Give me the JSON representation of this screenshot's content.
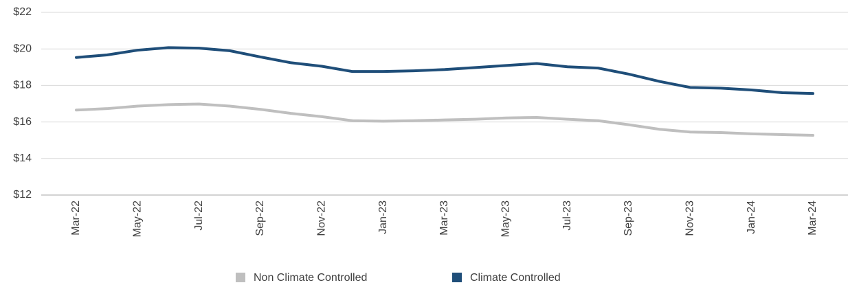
{
  "chart_data": {
    "type": "line",
    "categories": [
      "Mar-22",
      null,
      "May-22",
      null,
      "Jul-22",
      null,
      "Sep-22",
      null,
      "Nov-22",
      null,
      "Jan-23",
      null,
      "Mar-23",
      null,
      "May-23",
      null,
      "Jul-23",
      null,
      "Sep-23",
      null,
      "Nov-23",
      null,
      "Jan-24",
      null,
      "Mar-24"
    ],
    "series": [
      {
        "name": "Non Climate Controlled",
        "color": "#bfbfbf",
        "values": [
          16.65,
          16.73,
          16.87,
          16.95,
          16.98,
          16.87,
          16.69,
          16.47,
          16.29,
          16.07,
          16.04,
          16.07,
          16.11,
          16.15,
          16.22,
          16.25,
          16.15,
          16.07,
          15.85,
          15.6,
          15.45,
          15.42,
          15.35,
          15.31,
          15.27
        ]
      },
      {
        "name": "Climate Controlled",
        "color": "#1f4e79",
        "values": [
          19.53,
          19.67,
          19.93,
          20.07,
          20.04,
          19.9,
          19.56,
          19.24,
          19.05,
          18.76,
          18.76,
          18.8,
          18.87,
          18.98,
          19.09,
          19.2,
          19.02,
          18.95,
          18.62,
          18.22,
          17.89,
          17.85,
          17.75,
          17.6,
          17.56
        ]
      }
    ],
    "ylim": [
      12,
      22
    ],
    "yticks": [
      {
        "value": 12,
        "label": "$12"
      },
      {
        "value": 14,
        "label": "$14"
      },
      {
        "value": 16,
        "label": "$16"
      },
      {
        "value": 18,
        "label": "$18"
      },
      {
        "value": 20,
        "label": "$20"
      },
      {
        "value": 22,
        "label": "$22"
      }
    ],
    "grid": true,
    "legend": "bottom"
  }
}
